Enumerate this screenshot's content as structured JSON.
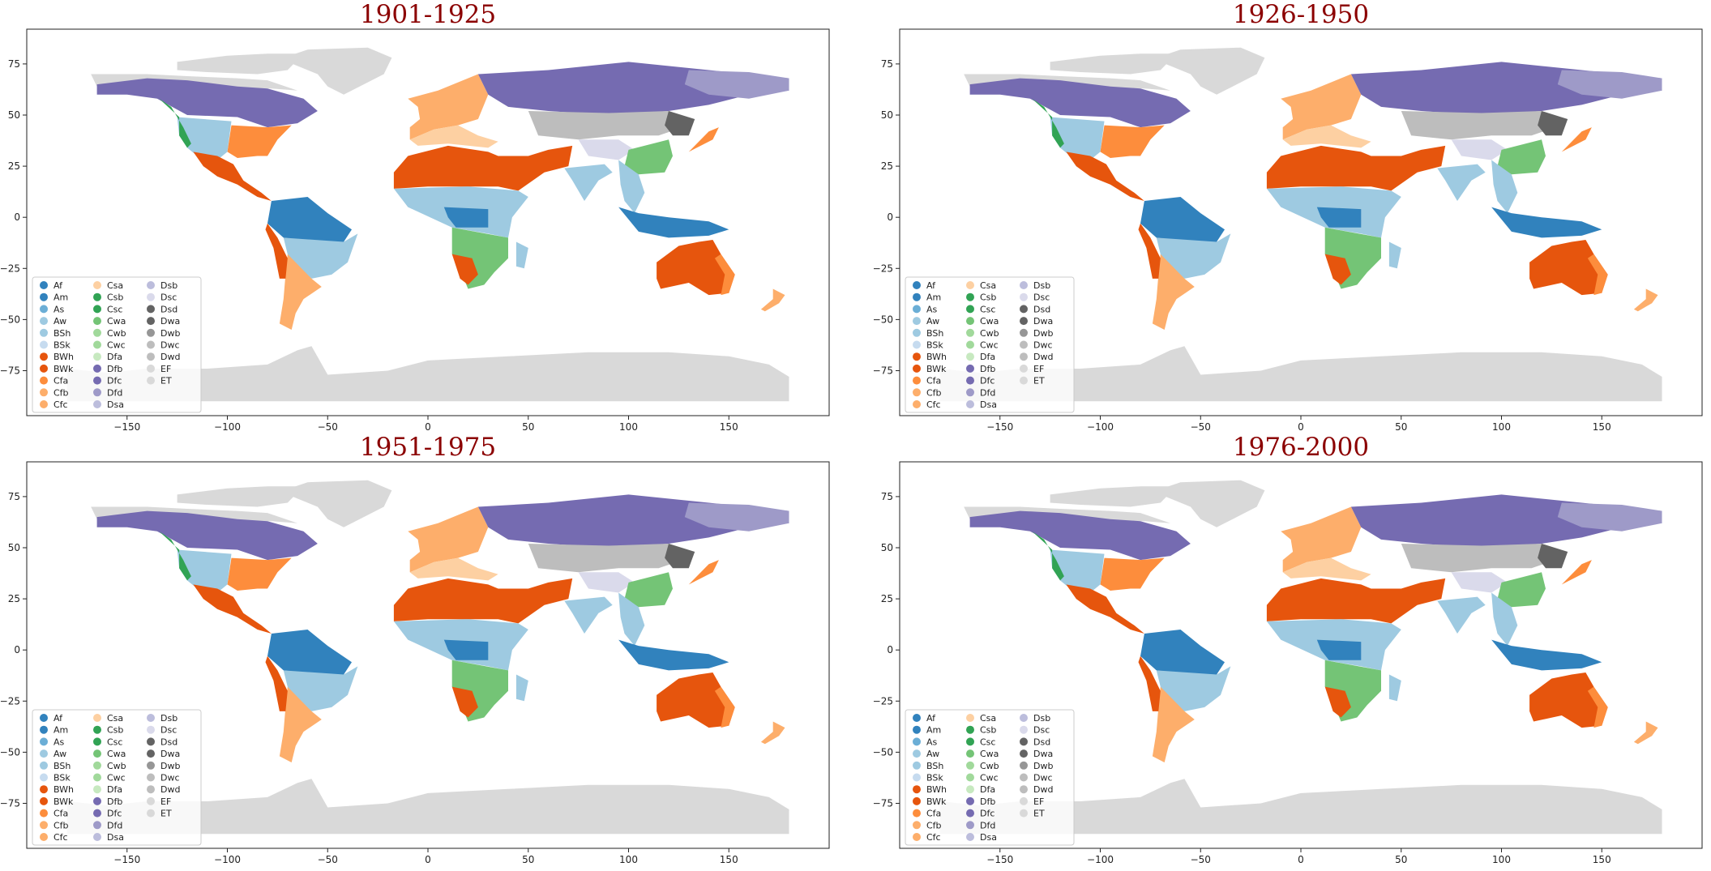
{
  "figure": {
    "panels": [
      {
        "title": "1901-1925"
      },
      {
        "title": "1926-1950"
      },
      {
        "title": "1951-1975"
      },
      {
        "title": "1976-2000"
      }
    ],
    "x_ticks": [
      "−150",
      "−100",
      "−50",
      "0",
      "50",
      "100",
      "150"
    ],
    "x_tick_values": [
      -150,
      -100,
      -50,
      0,
      50,
      100,
      150
    ],
    "y_ticks": [
      "75",
      "50",
      "25",
      "0",
      "−25",
      "−50",
      "−75"
    ],
    "y_tick_values": [
      75,
      50,
      25,
      0,
      -25,
      -50,
      -75
    ],
    "x_range": [
      -200,
      200
    ],
    "y_range": [
      -97,
      92
    ],
    "legend_placement": "lower-left",
    "legend": [
      {
        "label": "Af",
        "color": "#3182bd"
      },
      {
        "label": "Am",
        "color": "#3182bd"
      },
      {
        "label": "As",
        "color": "#6baed6"
      },
      {
        "label": "Aw",
        "color": "#9ecae1"
      },
      {
        "label": "BSh",
        "color": "#9ecae1"
      },
      {
        "label": "BSk",
        "color": "#c6dbef"
      },
      {
        "label": "BWh",
        "color": "#e6550d"
      },
      {
        "label": "BWk",
        "color": "#e6550d"
      },
      {
        "label": "Cfa",
        "color": "#fd8d3c"
      },
      {
        "label": "Cfb",
        "color": "#fdae6b"
      },
      {
        "label": "Cfc",
        "color": "#fdae6b"
      },
      {
        "label": "Csa",
        "color": "#fdd0a2"
      },
      {
        "label": "Csb",
        "color": "#31a354"
      },
      {
        "label": "Csc",
        "color": "#31a354"
      },
      {
        "label": "Cwa",
        "color": "#74c476"
      },
      {
        "label": "Cwb",
        "color": "#a1d99b"
      },
      {
        "label": "Cwc",
        "color": "#a1d99b"
      },
      {
        "label": "Dfa",
        "color": "#c7e9c0"
      },
      {
        "label": "Dfb",
        "color": "#756bb1"
      },
      {
        "label": "Dfc",
        "color": "#756bb1"
      },
      {
        "label": "Dfd",
        "color": "#9e9ac8"
      },
      {
        "label": "Dsa",
        "color": "#bcbddc"
      },
      {
        "label": "Dsb",
        "color": "#bcbddc"
      },
      {
        "label": "Dsc",
        "color": "#dadaeb"
      },
      {
        "label": "Dsd",
        "color": "#636363"
      },
      {
        "label": "Dwa",
        "color": "#636363"
      },
      {
        "label": "Dwb",
        "color": "#969696"
      },
      {
        "label": "Dwc",
        "color": "#bdbdbd"
      },
      {
        "label": "Dwd",
        "color": "#bdbdbd"
      },
      {
        "label": "EF",
        "color": "#d9d9d9"
      },
      {
        "label": "ET",
        "color": "#d9d9d9"
      }
    ],
    "colors": {
      "title": "#8b0000",
      "ice": "#d9d9d9",
      "boreal": "#756bb1",
      "desert": "#e6550d",
      "tropical": "#3182bd",
      "savanna": "#9ecae1",
      "temperate": "#fd8d3c",
      "humid_green": "#74c476"
    }
  }
}
